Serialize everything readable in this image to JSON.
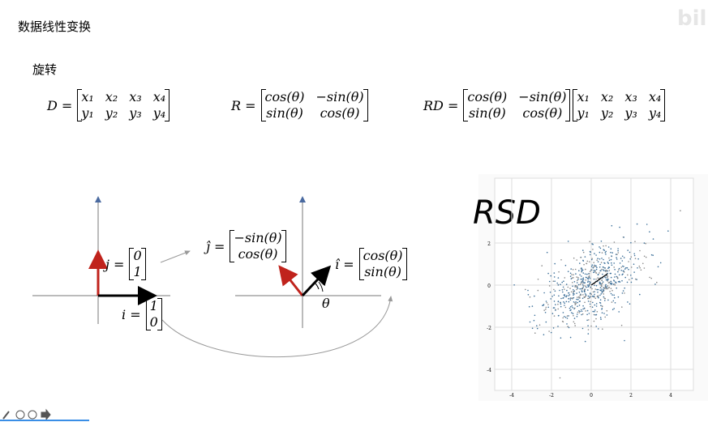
{
  "header": {
    "title": "数据线性变换",
    "watermark": "bili"
  },
  "section": "旋转",
  "equations": [
    {
      "label": "D =",
      "matrices": [
        [
          [
            "x₁",
            "x₂",
            "x₃",
            "x₄"
          ],
          [
            "y₁",
            "y₂",
            "y₃",
            "y₄"
          ]
        ]
      ]
    },
    {
      "label": "R =",
      "matrices": [
        [
          [
            "cos(θ)",
            "−sin(θ)"
          ],
          [
            "sin(θ)",
            "cos(θ)"
          ]
        ]
      ]
    },
    {
      "label": "RD =",
      "matrices": [
        [
          [
            "cos(θ)",
            "−sin(θ)"
          ],
          [
            "sin(θ)",
            "cos(θ)"
          ]
        ],
        [
          [
            "x₁",
            "x₂",
            "x₃",
            "x₄"
          ],
          [
            "y₁",
            "y₂",
            "y₃",
            "y₄"
          ]
        ]
      ]
    }
  ],
  "diagram": {
    "left": {
      "j": {
        "label": "j =",
        "matrix": [
          [
            "0"
          ],
          [
            "1"
          ]
        ]
      },
      "i": {
        "label": "i =",
        "matrix": [
          [
            "1"
          ],
          [
            "0"
          ]
        ]
      }
    },
    "right": {
      "j": {
        "label": "ĵ =",
        "matrix": [
          [
            "−sin(θ)"
          ],
          [
            "cos(θ)"
          ]
        ]
      },
      "i": {
        "label": "î =",
        "matrix": [
          [
            "cos(θ)"
          ],
          [
            "sin(θ)"
          ]
        ]
      },
      "angle": "θ"
    }
  },
  "plot": {
    "title": "RSD",
    "yticks": [
      "2",
      "0",
      "-2",
      "-4"
    ],
    "xticks": [
      "-4",
      "-2",
      "0",
      "2",
      "4"
    ]
  }
}
